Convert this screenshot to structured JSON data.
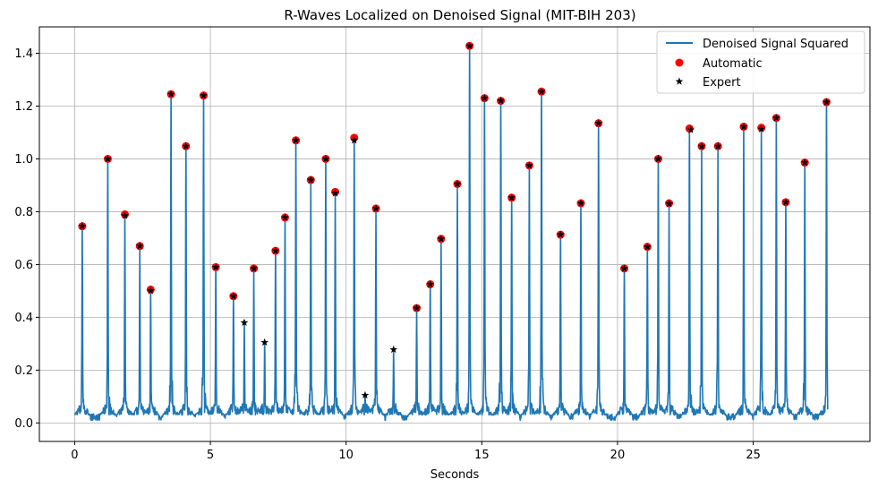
{
  "chart_data": {
    "type": "line",
    "title": "R-Waves Localized on Denoised Signal (MIT-BIH 203)",
    "xlabel": "Seconds",
    "ylabel": "",
    "xlim": [
      -1.3,
      29.3
    ],
    "ylim": [
      -0.07,
      1.5
    ],
    "xticks": [
      0,
      5,
      10,
      15,
      20,
      25
    ],
    "yticks": [
      0.0,
      0.2,
      0.4,
      0.6,
      0.8,
      1.0,
      1.2,
      1.4
    ],
    "grid": true,
    "legend_position": "top-right",
    "series": [
      {
        "name": "Denoised Signal Squared",
        "kind": "line",
        "color": "#1f77b4",
        "peaks": [
          [
            0.28,
            0.745
          ],
          [
            1.22,
            1.0
          ],
          [
            1.85,
            0.79
          ],
          [
            2.4,
            0.67
          ],
          [
            2.8,
            0.505
          ],
          [
            3.55,
            1.245
          ],
          [
            4.1,
            1.048
          ],
          [
            4.75,
            1.24
          ],
          [
            5.2,
            0.59
          ],
          [
            5.85,
            0.48
          ],
          [
            6.25,
            0.38
          ],
          [
            6.6,
            0.585
          ],
          [
            7.0,
            0.305
          ],
          [
            7.4,
            0.652
          ],
          [
            7.75,
            0.778
          ],
          [
            8.15,
            1.07
          ],
          [
            8.7,
            0.92
          ],
          [
            9.25,
            1.0
          ],
          [
            9.6,
            0.875
          ],
          [
            10.3,
            1.08
          ],
          [
            10.7,
            0.105
          ],
          [
            11.1,
            0.812
          ],
          [
            11.75,
            0.278
          ],
          [
            12.6,
            0.435
          ],
          [
            13.1,
            0.525
          ],
          [
            13.5,
            0.697
          ],
          [
            14.1,
            0.905
          ],
          [
            14.55,
            1.428
          ],
          [
            15.1,
            1.23
          ],
          [
            15.7,
            1.22
          ],
          [
            16.1,
            0.853
          ],
          [
            16.75,
            0.975
          ],
          [
            17.2,
            1.255
          ],
          [
            17.9,
            0.713
          ],
          [
            18.65,
            0.832
          ],
          [
            19.3,
            1.135
          ],
          [
            20.25,
            0.585
          ],
          [
            21.1,
            0.667
          ],
          [
            21.5,
            1.0
          ],
          [
            21.9,
            0.832
          ],
          [
            22.65,
            1.115
          ],
          [
            23.1,
            1.048
          ],
          [
            23.7,
            1.048
          ],
          [
            24.65,
            1.122
          ],
          [
            25.3,
            1.118
          ],
          [
            25.85,
            1.155
          ],
          [
            26.2,
            0.836
          ],
          [
            26.9,
            0.986
          ],
          [
            27.7,
            1.215
          ]
        ],
        "x_end": 27.75
      },
      {
        "name": "Automatic",
        "kind": "marker",
        "marker": "circle",
        "color": "#ff0000",
        "x": [
          0.28,
          1.22,
          1.85,
          2.4,
          2.8,
          3.55,
          4.1,
          4.75,
          5.2,
          5.85,
          6.6,
          7.4,
          7.75,
          8.15,
          8.7,
          9.25,
          9.6,
          10.3,
          11.1,
          12.6,
          13.1,
          13.5,
          14.1,
          14.55,
          15.1,
          15.7,
          16.1,
          16.75,
          17.2,
          17.9,
          18.65,
          19.3,
          20.25,
          21.1,
          21.5,
          21.9,
          22.65,
          23.1,
          23.7,
          24.65,
          25.3,
          25.85,
          26.2,
          26.9,
          27.7
        ],
        "y": [
          0.745,
          1.0,
          0.79,
          0.67,
          0.505,
          1.245,
          1.048,
          1.24,
          0.59,
          0.48,
          0.585,
          0.652,
          0.778,
          1.07,
          0.92,
          1.0,
          0.875,
          1.08,
          0.812,
          0.435,
          0.525,
          0.697,
          0.905,
          1.428,
          1.23,
          1.22,
          0.853,
          0.975,
          1.255,
          0.713,
          0.832,
          1.135,
          0.585,
          0.667,
          1.0,
          0.832,
          1.115,
          1.048,
          1.048,
          1.122,
          1.118,
          1.155,
          0.836,
          0.986,
          1.215
        ]
      },
      {
        "name": "Expert",
        "kind": "marker",
        "marker": "star",
        "color": "#000000",
        "x": [
          0.28,
          1.22,
          1.85,
          2.4,
          2.8,
          3.55,
          4.1,
          4.75,
          5.2,
          5.85,
          6.25,
          6.6,
          7.0,
          7.4,
          7.75,
          8.15,
          8.7,
          9.25,
          9.6,
          10.3,
          10.7,
          11.1,
          11.75,
          12.6,
          13.1,
          13.5,
          14.1,
          14.55,
          15.1,
          15.7,
          16.1,
          16.75,
          17.2,
          17.9,
          18.65,
          19.3,
          20.25,
          21.1,
          21.5,
          21.9,
          22.7,
          23.1,
          23.7,
          24.65,
          25.3,
          25.85,
          26.2,
          26.9,
          27.7
        ],
        "y": [
          0.745,
          1.0,
          0.785,
          0.67,
          0.5,
          1.245,
          1.048,
          1.24,
          0.59,
          0.48,
          0.38,
          0.585,
          0.305,
          0.652,
          0.778,
          1.07,
          0.92,
          1.0,
          0.87,
          1.07,
          0.105,
          0.812,
          0.278,
          0.435,
          0.525,
          0.697,
          0.905,
          1.428,
          1.23,
          1.22,
          0.853,
          0.975,
          1.255,
          0.713,
          0.832,
          1.135,
          0.585,
          0.667,
          1.0,
          0.83,
          1.11,
          1.048,
          1.048,
          1.122,
          1.113,
          1.155,
          0.836,
          0.986,
          1.215
        ]
      }
    ]
  }
}
